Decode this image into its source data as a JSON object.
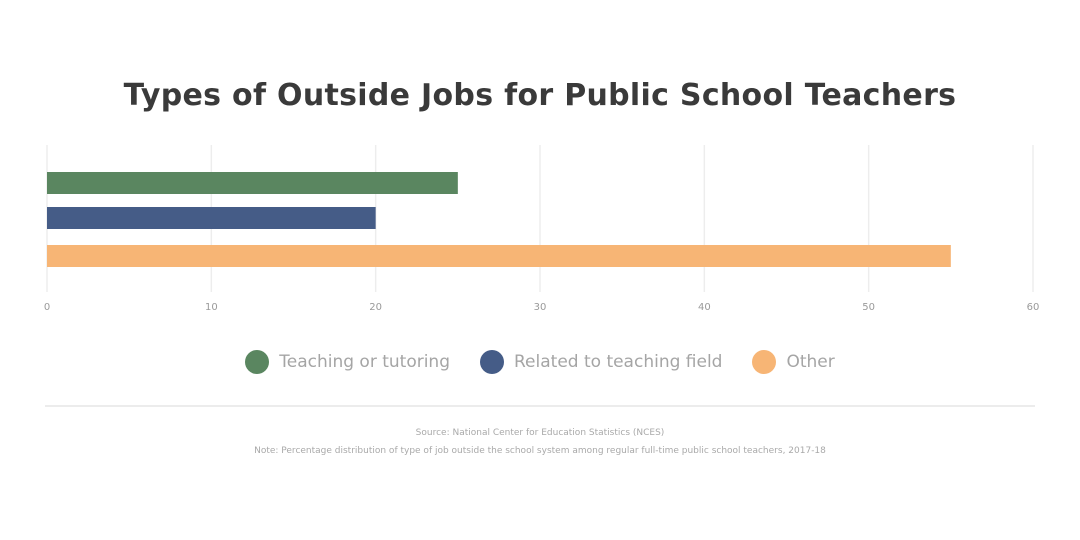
{
  "chart_data": {
    "type": "bar",
    "orientation": "horizontal",
    "title": "Types of Outside Jobs for Public School Teachers",
    "categories": [
      "Teaching or tutoring",
      "Related to teaching field",
      "Other"
    ],
    "values": [
      25,
      20,
      55
    ],
    "colors": [
      "#5a8660",
      "#455c87",
      "#f7b575"
    ],
    "xlim": [
      0,
      60
    ],
    "xticks": [
      "0",
      "10",
      "20",
      "30",
      "40",
      "50",
      "60"
    ],
    "grid": true,
    "legend_position": "bottom",
    "xlabel": "",
    "ylabel": ""
  },
  "legend": {
    "items": [
      {
        "label": "Teaching or tutoring",
        "color": "#5a8660"
      },
      {
        "label": "Related to teaching field",
        "color": "#455c87"
      },
      {
        "label": "Other",
        "color": "#f7b575"
      }
    ]
  },
  "footer": {
    "source": "Source: National Center for Education Statistics (NCES)",
    "note": "Note: Percentage distribution of type of job outside the school system among regular full-time public school teachers, 2017-18"
  }
}
